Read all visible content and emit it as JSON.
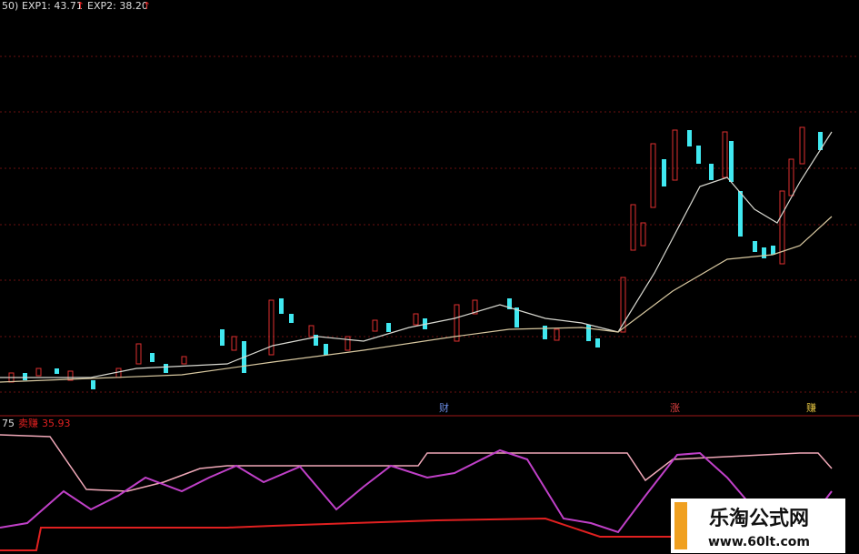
{
  "header": {
    "period": "50)",
    "exp1": "EXP1: 43.71",
    "exp1_arrow": "↑",
    "exp2": "EXP2: 38.20",
    "exp2_arrow": "↑"
  },
  "markers": [
    "财",
    "涨",
    "赚"
  ],
  "indicator": {
    "prefix": "75",
    "name": "卖赚",
    "value": "35.93"
  },
  "watermark": {
    "title": "乐淘公式网",
    "url": "www.60lt.com"
  }
}
